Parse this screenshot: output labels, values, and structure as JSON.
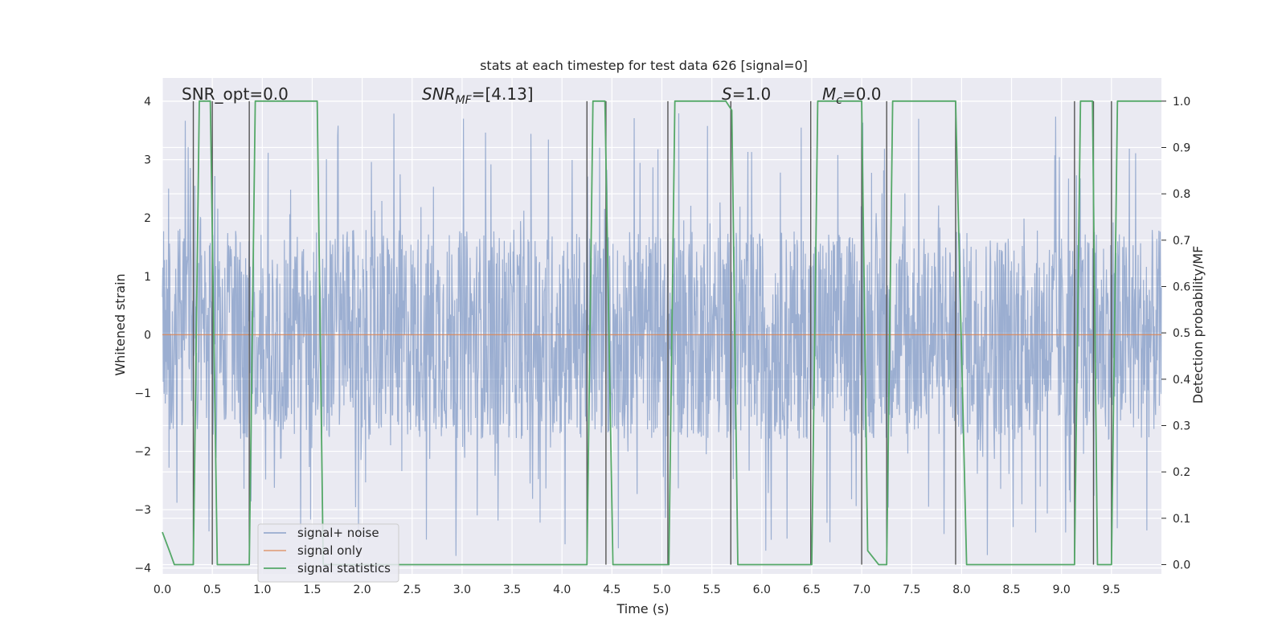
{
  "chart_data": {
    "type": "line",
    "title": "stats at each timestep for test data 626 [signal=0]",
    "xlabel": "Time (s)",
    "ylabel_left": "Whitened strain",
    "ylabel_right": "Detection probability/MF",
    "xlim": [
      0.0,
      10.0
    ],
    "ylim_left": [
      -4.1,
      4.4
    ],
    "ylim_right": [
      -0.02,
      1.05
    ],
    "x_ticks": [
      "0.0",
      "0.5",
      "1.0",
      "1.5",
      "2.0",
      "2.5",
      "3.0",
      "3.5",
      "4.0",
      "4.5",
      "5.0",
      "5.5",
      "6.0",
      "6.5",
      "7.0",
      "7.5",
      "8.0",
      "8.5",
      "9.0",
      "9.5"
    ],
    "y_ticks_left": [
      "−4",
      "−3",
      "−2",
      "−1",
      "0",
      "1",
      "2",
      "3",
      "4"
    ],
    "y_ticks_right": [
      "0.0",
      "0.1",
      "0.2",
      "0.3",
      "0.4",
      "0.5",
      "0.6",
      "0.7",
      "0.8",
      "0.9",
      "1.0"
    ],
    "grid": true,
    "legend_position": "lower-left",
    "annotations": {
      "snr_opt": "SNR_opt=0.0",
      "snr_mf_base": "SNR",
      "snr_mf_sub": "MF",
      "snr_mf_value": "=[4.13]",
      "s_label": "S",
      "s_value": "=1.0",
      "mc_base": "M",
      "mc_sub": "c",
      "mc_value": "=0.0"
    },
    "series": [
      {
        "name": "signal+ noise",
        "color": "#4c72b0",
        "noise_amplitude_typical": 1.8,
        "noise_amplitude_peak": 3.8
      },
      {
        "name": "signal only",
        "color": "#dd8452",
        "values_constant": 0.0
      },
      {
        "name": "signal statistics",
        "color": "#55a868",
        "x": [
          0.0,
          0.07,
          0.12,
          0.31,
          0.37,
          0.48,
          0.55,
          0.87,
          0.93,
          1.55,
          1.61,
          4.25,
          4.31,
          4.43,
          4.51,
          5.07,
          5.13,
          5.64,
          5.7,
          5.76,
          6.5,
          6.56,
          7.0,
          7.06,
          7.17,
          7.25,
          7.31,
          7.94,
          8.05,
          9.13,
          9.19,
          9.31,
          9.36,
          9.42,
          9.5,
          9.56,
          10.0
        ],
        "y": [
          0.07,
          0.03,
          0.0,
          0.0,
          1.0,
          1.0,
          0.0,
          0.0,
          1.0,
          1.0,
          0.0,
          0.0,
          1.0,
          1.0,
          0.0,
          0.0,
          1.0,
          1.0,
          0.98,
          0.0,
          0.0,
          1.0,
          1.0,
          0.03,
          0.0,
          0.0,
          1.0,
          1.0,
          0.0,
          0.0,
          1.0,
          1.0,
          0.0,
          0.0,
          0.0,
          1.0,
          1.0
        ]
      }
    ],
    "vertical_markers_x": [
      0.31,
      0.5,
      0.87,
      4.25,
      4.44,
      5.06,
      5.69,
      6.49,
      7.0,
      7.25,
      7.94,
      9.13,
      9.32,
      9.5
    ]
  },
  "colors": {
    "axes_bg": "#eaeaf2",
    "grid": "#ffffff",
    "marker": "#555555"
  }
}
